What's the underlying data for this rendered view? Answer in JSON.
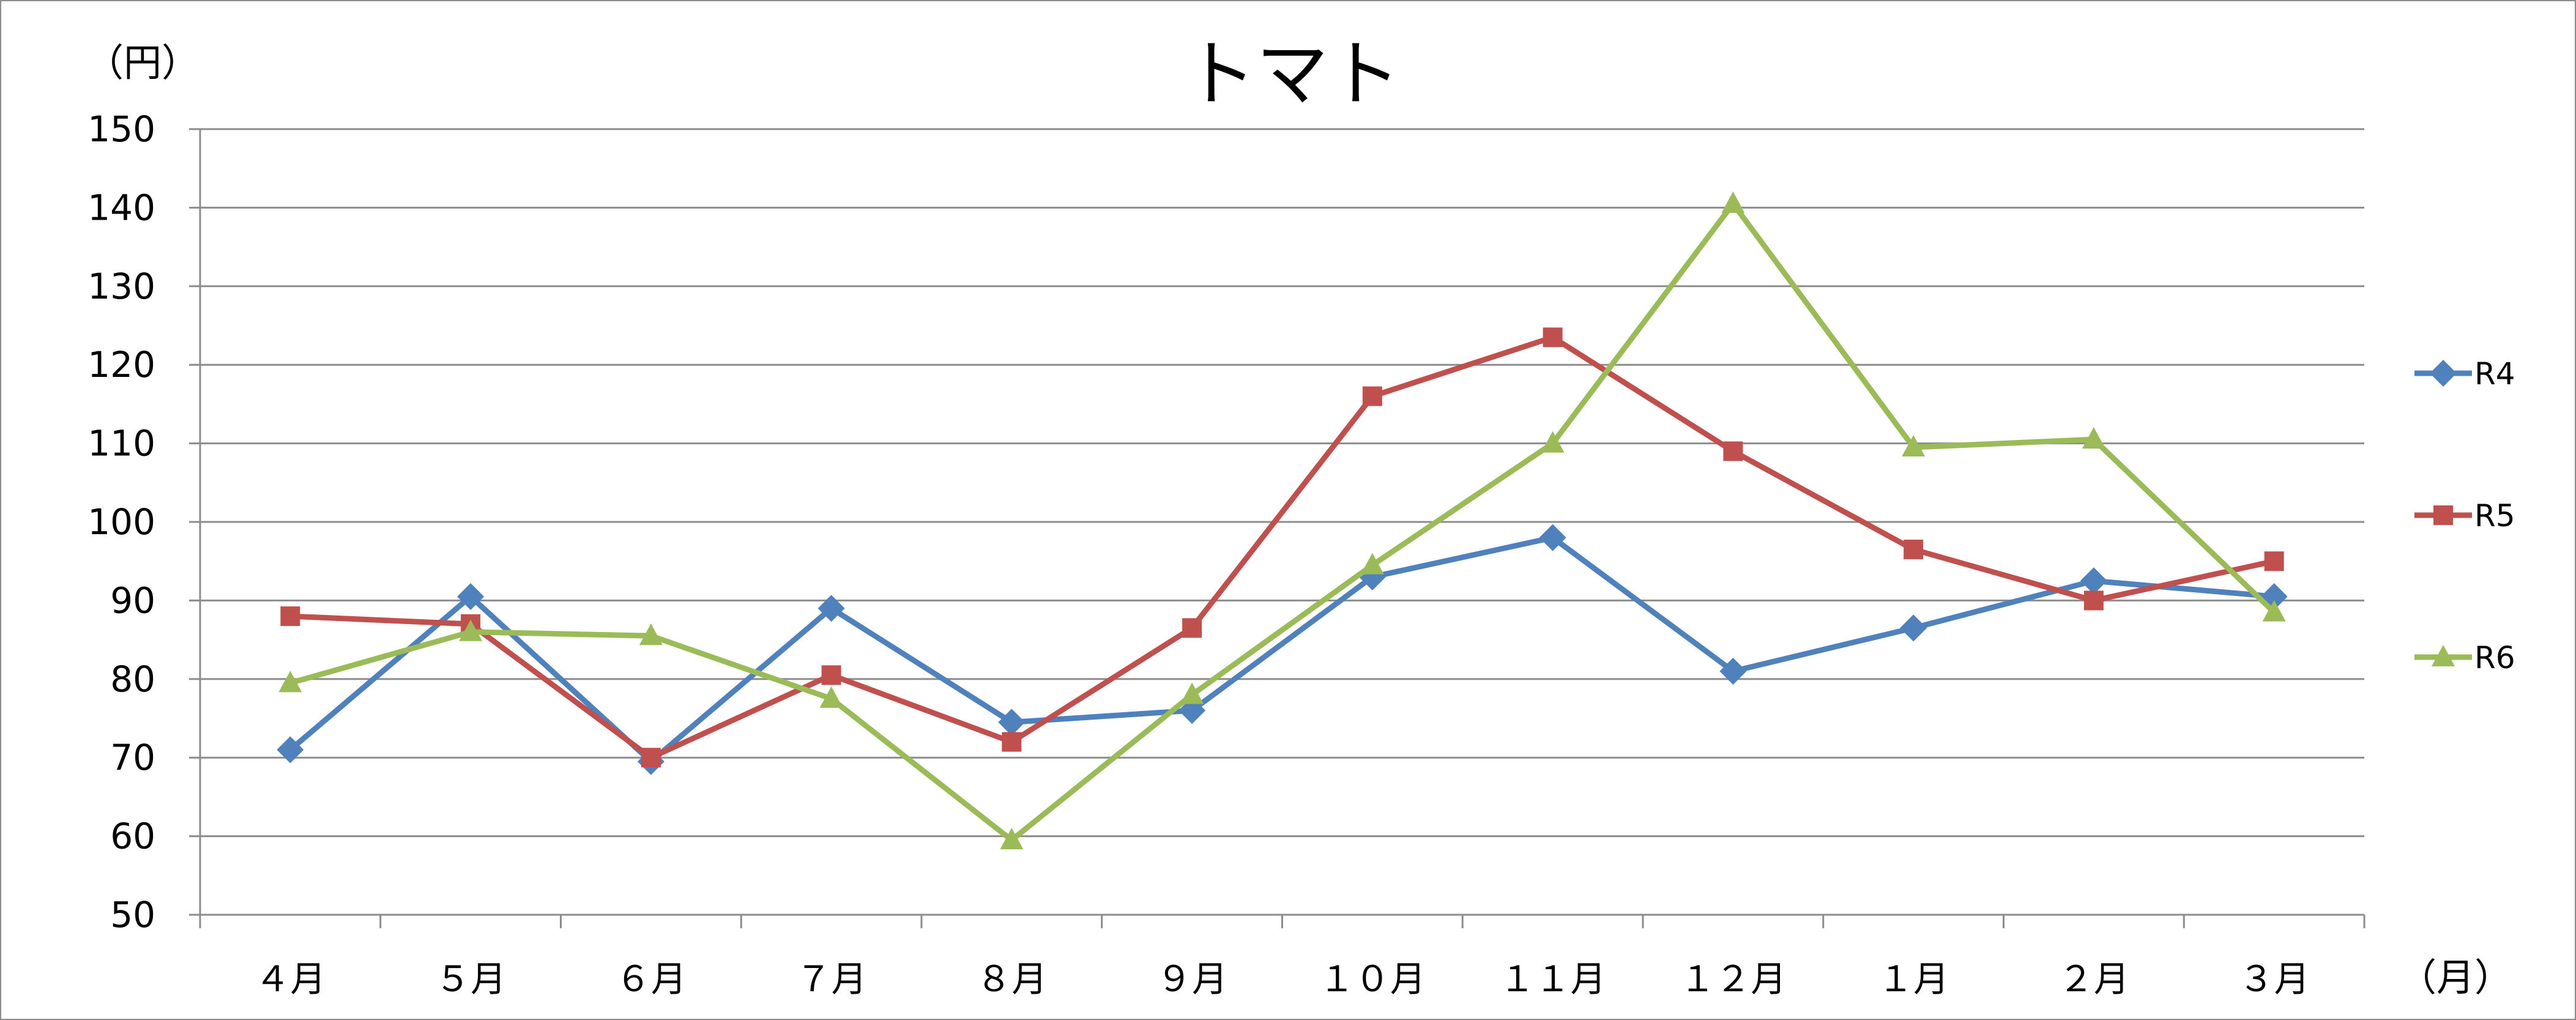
{
  "chart_data": {
    "type": "line",
    "title": "トマト",
    "ylabel": "（円）",
    "xlabel": "（月）",
    "categories": [
      "４月",
      "５月",
      "６月",
      "７月",
      "８月",
      "９月",
      "１０月",
      "１１月",
      "１２月",
      "１月",
      "２月",
      "３月"
    ],
    "ylim": [
      50,
      150
    ],
    "yticks": [
      50,
      60,
      70,
      80,
      90,
      100,
      110,
      120,
      130,
      140,
      150
    ],
    "grid": true,
    "legend_position": "right",
    "series": [
      {
        "name": "R4",
        "color": "#4f81bd",
        "marker": "diamond",
        "values": [
          71,
          90.5,
          69.5,
          89,
          74.5,
          76,
          93,
          98,
          81,
          86.5,
          92.5,
          90.5
        ]
      },
      {
        "name": "R5",
        "color": "#c0504d",
        "marker": "square",
        "values": [
          88,
          87,
          70,
          80.5,
          72,
          86.5,
          116,
          123.5,
          109,
          96.5,
          90,
          95
        ]
      },
      {
        "name": "R6",
        "color": "#9bbb59",
        "marker": "triangle",
        "values": [
          79.5,
          86,
          85.5,
          77.5,
          59.5,
          78,
          94.5,
          110,
          140.5,
          109.5,
          110.5,
          88.5
        ]
      }
    ]
  }
}
